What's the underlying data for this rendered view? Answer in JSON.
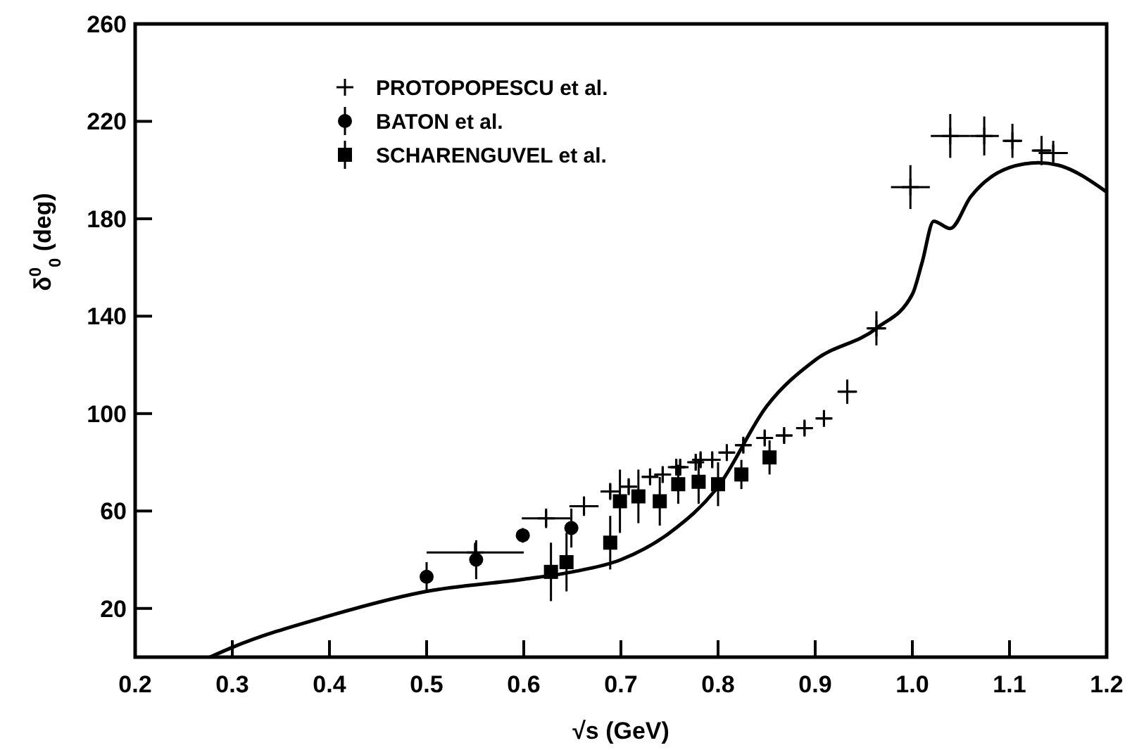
{
  "chart_data": {
    "type": "scatter",
    "xlabel": "√s  (GeV)",
    "ylabel": "δ$^{0}$$_{0}$ (deg)",
    "xlim": [
      0.2,
      1.2
    ],
    "ylim": [
      0,
      260
    ],
    "xticks": [
      0.2,
      0.3,
      0.4,
      0.5,
      0.6,
      0.7,
      0.8,
      0.9,
      {
        "value": 1,
        "label": "1.0"
      },
      1.1,
      1.2
    ],
    "yticks": [
      20,
      60,
      100,
      140,
      180,
      220,
      260
    ],
    "grid": false,
    "legend": "top left",
    "series": [
      {
        "name": "PROTOPOPESCU et al.",
        "color": "#000000",
        "marker": "cross",
        "x": [
          0.55,
          0.623,
          0.662,
          0.689,
          0.708,
          0.73,
          0.743,
          0.757,
          0.761,
          0.777,
          0.782,
          0.794,
          0.809,
          0.826,
          0.848,
          0.868,
          0.889,
          0.909,
          0.933,
          0.963,
          0.998,
          1.039,
          1.074,
          1.103,
          1.133,
          1.145
        ],
        "values": [
          43,
          57,
          62,
          68,
          70,
          74,
          75,
          78,
          78,
          80,
          81,
          81,
          84,
          87,
          90,
          91,
          94,
          98,
          109,
          135,
          193,
          214,
          214,
          212,
          208,
          207
        ],
        "errors": [
          4,
          4,
          4,
          3,
          3,
          3,
          3,
          3,
          3,
          3,
          3,
          3,
          3,
          3,
          3,
          3,
          3,
          3,
          5,
          7,
          9,
          9,
          8,
          7,
          6,
          5
        ],
        "xerrors": [
          0.05,
          0.025,
          0.015,
          0.01,
          0.008,
          0.008,
          0.006,
          0.006,
          0.006,
          0.006,
          0.006,
          0.006,
          0.008,
          0.008,
          0.008,
          0.008,
          0.008,
          0.008,
          0.01,
          0.01,
          0.02,
          0.02,
          0.015,
          0.01,
          0.01,
          0.015
        ]
      },
      {
        "name": "BATON et al.",
        "color": "#000000",
        "marker": "circle",
        "x": [
          0.5,
          0.551,
          0.599,
          0.649
        ],
        "values": [
          33,
          40,
          50,
          53
        ],
        "errors": [
          6,
          8,
          3,
          8
        ]
      },
      {
        "name": "SCHARENGUVEL et al.",
        "color": "#000000",
        "marker": "square",
        "x": [
          0.628,
          0.644,
          0.689,
          0.699,
          0.718,
          0.74,
          0.759,
          0.78,
          0.8,
          0.824,
          0.853
        ],
        "values": [
          35,
          39,
          47,
          64,
          66,
          64,
          71,
          72,
          71,
          75,
          82
        ],
        "errors": [
          12,
          12,
          11,
          13,
          11,
          10,
          8,
          9,
          9,
          6,
          7
        ]
      },
      {
        "type": "line",
        "color": "#000000",
        "marker": "none",
        "x": [
          0.277,
          0.3,
          0.4,
          0.5,
          0.6,
          0.65,
          0.7,
          0.75,
          0.8,
          0.85,
          0.9,
          0.963,
          1.0,
          1.01,
          1.022,
          1.039,
          1.06,
          1.1,
          1.13,
          1.15,
          1.2
        ],
        "values": [
          0,
          4,
          17,
          27,
          32,
          35,
          40,
          51,
          70,
          103,
          122,
          135,
          149,
          162,
          179,
          176,
          189,
          201,
          203,
          202,
          191
        ]
      }
    ]
  }
}
